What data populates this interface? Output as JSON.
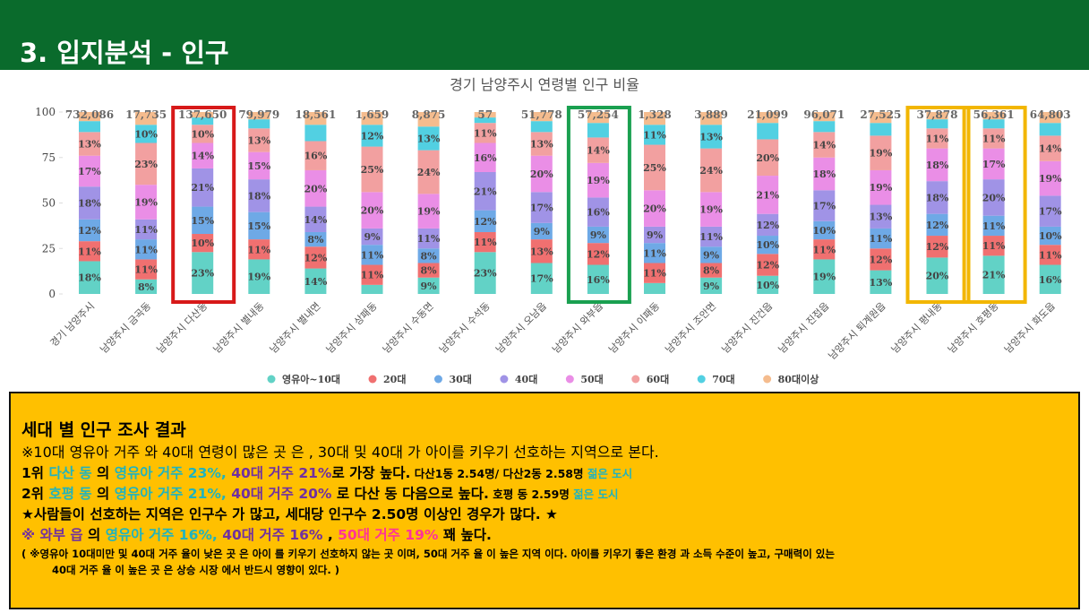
{
  "header": {
    "title": "3. 입지분석 - 인구"
  },
  "chart_data": {
    "type": "stacked_bar_100",
    "title": "경기 남양주시 연령별 인구 비율",
    "categories": [
      "경기 남양주시",
      "남양주시 금곡동",
      "남양주시 다산동",
      "남양주시 별내동",
      "남양주시 별내면",
      "남양주시 상패동",
      "남양주시 수동면",
      "남양주시 수석동",
      "남양주시 오남읍",
      "남양주시 와부읍",
      "남양주시 이패동",
      "남양주시 조안면",
      "남양주시 진건읍",
      "남양주시 진접읍",
      "남양주시 퇴계원읍",
      "남양주시 평내동",
      "남양주시 호평동",
      "남양주시 화도읍"
    ],
    "total_labels": [
      "732,086",
      "17,735",
      "137,650",
      "79,979",
      "18,561",
      "1,659",
      "8,875",
      "57",
      "51,778",
      "57,254",
      "1,328",
      "3,889",
      "21,099",
      "96,071",
      "27,525",
      "37,878",
      "56,361",
      "64,803"
    ],
    "ylim": [
      0,
      100
    ],
    "yticks": [
      0,
      25,
      50,
      75,
      100
    ],
    "series": [
      {
        "name": "영유아~10대",
        "color": "#62d2c6",
        "values": [
          18,
          8,
          23,
          19,
          14,
          5,
          9,
          23,
          17,
          16,
          6,
          9,
          10,
          19,
          13,
          20,
          21,
          16
        ],
        "value_labels": [
          "18%",
          "8%",
          "23%",
          "19%",
          "14%",
          null,
          "9%",
          "23%",
          "17%",
          "16%",
          null,
          "9%",
          "10%",
          "19%",
          "13%",
          "20%",
          "21%",
          "16%"
        ]
      },
      {
        "name": "20대",
        "color": "#f07070",
        "values": [
          11,
          11,
          10,
          11,
          12,
          11,
          8,
          11,
          13,
          12,
          11,
          8,
          12,
          11,
          12,
          12,
          11,
          11
        ],
        "value_labels": [
          "11%",
          "11%",
          "10%",
          "11%",
          "12%",
          "11%",
          "8%",
          "11%",
          "13%",
          "12%",
          "11%",
          "8%",
          "12%",
          "11%",
          "12%",
          "12%",
          "11%",
          "11%"
        ]
      },
      {
        "name": "30대",
        "color": "#6ea9e6",
        "values": [
          12,
          11,
          15,
          15,
          8,
          11,
          8,
          12,
          9,
          9,
          11,
          9,
          10,
          10,
          11,
          12,
          11,
          10
        ],
        "value_labels": [
          "12%",
          "11%",
          "15%",
          "15%",
          "8%",
          "11%",
          "8%",
          "12%",
          "9%",
          "9%",
          "11%",
          "9%",
          "10%",
          "10%",
          "11%",
          "12%",
          "11%",
          "10%"
        ]
      },
      {
        "name": "40대",
        "color": "#a093e6",
        "values": [
          18,
          11,
          21,
          18,
          14,
          9,
          11,
          21,
          17,
          16,
          9,
          11,
          12,
          17,
          13,
          18,
          20,
          17
        ],
        "value_labels": [
          "18%",
          "11%",
          "21%",
          "18%",
          "14%",
          "9%",
          "11%",
          "21%",
          "17%",
          "16%",
          "9%",
          "11%",
          "12%",
          "17%",
          "13%",
          "18%",
          "20%",
          "17%"
        ]
      },
      {
        "name": "50대",
        "color": "#ea8ee6",
        "values": [
          17,
          19,
          14,
          15,
          20,
          20,
          19,
          16,
          20,
          19,
          20,
          19,
          21,
          18,
          19,
          18,
          17,
          19
        ],
        "value_labels": [
          "17%",
          "19%",
          "14%",
          "15%",
          "20%",
          "20%",
          "19%",
          "16%",
          "20%",
          "19%",
          "20%",
          "19%",
          "21%",
          "18%",
          "19%",
          "18%",
          "17%",
          "19%"
        ]
      },
      {
        "name": "60대",
        "color": "#f2a0a0",
        "values": [
          13,
          23,
          10,
          13,
          16,
          25,
          24,
          11,
          13,
          14,
          25,
          24,
          20,
          14,
          19,
          11,
          11,
          14
        ],
        "value_labels": [
          "13%",
          "23%",
          "10%",
          "13%",
          "16%",
          "25%",
          "24%",
          "11%",
          "13%",
          "14%",
          "25%",
          "24%",
          "20%",
          "14%",
          "19%",
          "11%",
          "11%",
          "14%"
        ]
      },
      {
        "name": "70대",
        "color": "#52d0e2",
        "values": [
          6,
          10,
          4,
          5,
          9,
          12,
          13,
          3,
          6,
          8,
          11,
          13,
          9,
          6,
          7,
          5,
          5,
          7
        ],
        "value_labels": [
          null,
          "10%",
          null,
          null,
          null,
          "12%",
          "13%",
          null,
          null,
          null,
          "11%",
          "13%",
          null,
          null,
          null,
          null,
          null,
          null
        ]
      },
      {
        "name": "80대이상",
        "color": "#f5bc8e",
        "values": [
          5,
          7,
          3,
          4,
          7,
          7,
          8,
          3,
          5,
          6,
          7,
          7,
          6,
          5,
          6,
          4,
          4,
          6
        ],
        "value_labels": [
          null,
          null,
          null,
          null,
          null,
          null,
          null,
          null,
          null,
          null,
          null,
          null,
          null,
          null,
          null,
          null,
          null,
          null
        ]
      }
    ],
    "highlights": [
      {
        "index": 2,
        "color": "#d71919"
      },
      {
        "index": 9,
        "color": "#1aa050"
      },
      {
        "index": 15,
        "color": "#f2b600"
      },
      {
        "index": 16,
        "color": "#f2b600"
      }
    ]
  },
  "summary": {
    "heading": "세대 별 인구 조사 결과",
    "lines": [
      {
        "size": "normal",
        "spans": [
          {
            "text": "※10대 영유아 거주 와 40대 연령이 많은 곳 은 , 30대 및 40대 가 아이를 키우기 선호하는 지역으로 본다.",
            "color": "#000000"
          }
        ]
      },
      {
        "size": "bold",
        "spans": [
          {
            "text": "1위 ",
            "color": "#000000"
          },
          {
            "text": "다산 동",
            "color": "#1fb3bf"
          },
          {
            "text": " 의 ",
            "color": "#000000"
          },
          {
            "text": "영유아 거주 23%, ",
            "color": "#1fb3bf"
          },
          {
            "text": "40대 거주 21%",
            "color": "#7030a0"
          },
          {
            "text": "로 가장 높다.",
            "color": "#000000"
          },
          {
            "text": " 다산1동 2.54명/ 다산2동 2.58명 ",
            "color": "#000000",
            "small": true
          },
          {
            "text": "젊은 도시",
            "color": "#1fb3bf",
            "small": true
          }
        ]
      },
      {
        "size": "bold",
        "spans": [
          {
            "text": "2위 ",
            "color": "#000000"
          },
          {
            "text": "호평 동",
            "color": "#1fb3bf"
          },
          {
            "text": " 의 ",
            "color": "#000000"
          },
          {
            "text": "영유아 거주 21%, ",
            "color": "#1fb3bf"
          },
          {
            "text": "40대 거주 20%",
            "color": "#7030a0"
          },
          {
            "text": " 로 다산 동 다음으로 높다.",
            "color": "#000000"
          },
          {
            "text": " 호평 동 2.59명 ",
            "color": "#000000",
            "small": true
          },
          {
            "text": "젊은 도시",
            "color": "#1fb3bf",
            "small": true
          }
        ]
      },
      {
        "size": "bold",
        "spans": [
          {
            "text": "★사람들이 선호하는 지역은 인구수 가 많고, 세대당 인구수 2.50명 이상인 경우가 많다. ★",
            "color": "#000000"
          }
        ]
      },
      {
        "size": "bold",
        "spans": [
          {
            "text": "※ 와부 읍",
            "color": "#7030a0"
          },
          {
            "text": " 의 ",
            "color": "#000000"
          },
          {
            "text": "영유아 거주 16%, ",
            "color": "#1fb3bf"
          },
          {
            "text": "40대 거주 16%",
            "color": "#7030a0"
          },
          {
            "text": " , ",
            "color": "#000000"
          },
          {
            "text": "50대 거주 19%",
            "color": "#ff3399"
          },
          {
            "text": " 꽤 높다.",
            "color": "#000000"
          }
        ]
      },
      {
        "size": "small",
        "spans": [
          {
            "text": "( ※영유아 10대미만 및 40대 거주 율이 낮은 곳 은 아이 를 키우기 선호하지 않는 곳 이며, 50대 거주 율 이 높은 지역 이다. 아이를 키우기 좋은 환경 과 소득 수준이 높고, 구매력이 있는",
            "color": "#000000"
          }
        ]
      },
      {
        "size": "small-indent",
        "spans": [
          {
            "text": "40대 거주 율 이 높은 곳 은 상승 시장 에서 반드시 영향이 있다. )",
            "color": "#000000"
          }
        ]
      }
    ]
  }
}
